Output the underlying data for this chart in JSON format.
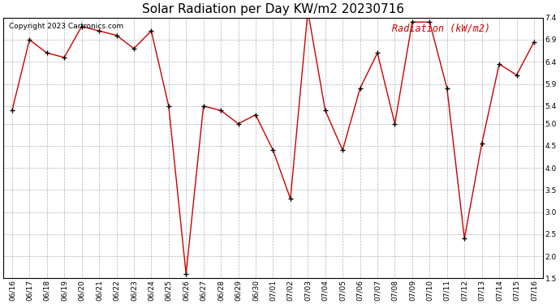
{
  "title": "Solar Radiation per Day KW/m2 20230716",
  "copyright_text": "Copyright 2023 Cartronics.com",
  "legend_label": "Radiation (kW/m2)",
  "dates": [
    "06/16",
    "06/17",
    "06/18",
    "06/19",
    "06/20",
    "06/21",
    "06/22",
    "06/23",
    "06/24",
    "06/25",
    "06/26",
    "06/27",
    "06/28",
    "06/29",
    "06/30",
    "07/01",
    "07/02",
    "07/03",
    "07/04",
    "07/05",
    "07/06",
    "07/07",
    "07/08",
    "07/09",
    "07/10",
    "07/11",
    "07/12",
    "07/13",
    "07/14",
    "07/15",
    "07/16"
  ],
  "values": [
    5.3,
    6.9,
    6.6,
    6.5,
    7.2,
    7.1,
    7.0,
    6.7,
    7.1,
    5.4,
    1.6,
    5.4,
    5.3,
    5.0,
    5.2,
    4.4,
    3.3,
    7.55,
    5.3,
    4.4,
    5.8,
    6.6,
    5.0,
    7.3,
    7.3,
    5.8,
    2.4,
    4.55,
    6.35,
    6.1,
    6.85
  ],
  "line_color": "#cc0000",
  "marker_color": "#000000",
  "bg_color": "#ffffff",
  "grid_color": "#aaaaaa",
  "title_color": "#000000",
  "copyright_color": "#000000",
  "legend_color": "#cc0000",
  "border_color": "#000000",
  "ylim": [
    1.5,
    7.4
  ],
  "yticks": [
    1.5,
    2.0,
    2.5,
    3.0,
    3.5,
    4.0,
    4.5,
    5.0,
    5.4,
    5.9,
    6.4,
    6.9,
    7.4
  ],
  "title_fontsize": 11,
  "copyright_fontsize": 6.5,
  "legend_fontsize": 8.5,
  "tick_fontsize": 6.5
}
